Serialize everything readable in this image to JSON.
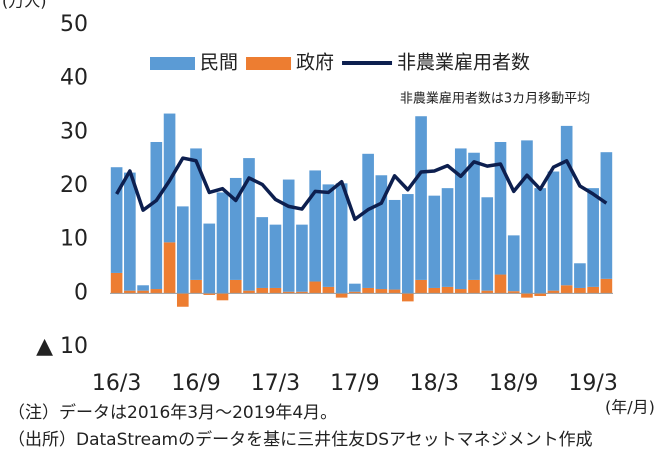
{
  "chart_data": {
    "type": "bar",
    "y_unit": "(万人)",
    "x_unit": "(年/月)",
    "annotation": "非農業雇用者数は3カ月移動平均",
    "notes": [
      "（注）データは2016年3月～2019年4月。",
      "（出所）DataStreamのデータを基に三井住友DSアセットマネジメント作成"
    ],
    "stacked": true,
    "legend": "top",
    "categories": [
      "16/3",
      null,
      null,
      null,
      null,
      null,
      "16/9",
      null,
      null,
      null,
      null,
      null,
      "17/3",
      null,
      null,
      null,
      null,
      null,
      "17/9",
      null,
      null,
      null,
      null,
      null,
      "18/3",
      null,
      null,
      null,
      null,
      null,
      "18/9",
      null,
      null,
      null,
      null,
      null,
      "19/3",
      null
    ],
    "series": [
      {
        "name": "民間",
        "type": "bar",
        "color": "#5b9bd5",
        "values": [
          19.7,
          22,
          1,
          27.4,
          24,
          16.2,
          24.5,
          13,
          18.8,
          19,
          24.7,
          13.2,
          11.8,
          20.9,
          12.5,
          20.7,
          19.1,
          20.5,
          1.5,
          25,
          21.2,
          16.7,
          18.5,
          30.5,
          17.2,
          18.4,
          26.2,
          23.7,
          17.4,
          24.7,
          10.4,
          28.5,
          19.6,
          22.2,
          29.7,
          4.6,
          18.4,
          23.6
        ]
      },
      {
        "name": "政府",
        "type": "bar",
        "color": "#ed7d31",
        "values": [
          3.8,
          0.5,
          0.5,
          0.8,
          9.5,
          -2.5,
          2.5,
          -0.3,
          -1.3,
          2.5,
          0.5,
          1,
          1,
          0.3,
          0.3,
          2.2,
          1.2,
          -0.8,
          0.3,
          1,
          0.8,
          0.7,
          -1.5,
          2.5,
          1,
          1.2,
          0.8,
          2.5,
          0.5,
          3.5,
          0.4,
          -0.8,
          -0.5,
          0.5,
          1.5,
          1,
          1.2,
          2.7
        ]
      },
      {
        "name": "非農業雇用者数",
        "type": "line",
        "color": "#0d1f4f",
        "values": [
          18.5,
          22.8,
          15.5,
          17.3,
          21,
          25.2,
          24.7,
          18.8,
          19.5,
          17.3,
          21.5,
          20.3,
          17.5,
          16.2,
          15.7,
          19,
          18.8,
          20.8,
          13.8,
          15.6,
          16.8,
          21.9,
          19.3,
          22.6,
          22.8,
          23.8,
          21.8,
          24.5,
          23.7,
          24.1,
          19,
          22,
          19.4,
          23.5,
          24.7,
          20,
          18.5,
          16.8
        ]
      }
    ],
    "ylim": [
      -10,
      50
    ],
    "yticks": [
      {
        "value": -10,
        "label": "▲ 10"
      },
      0,
      10,
      20,
      30,
      40,
      50
    ],
    "grid": false
  }
}
